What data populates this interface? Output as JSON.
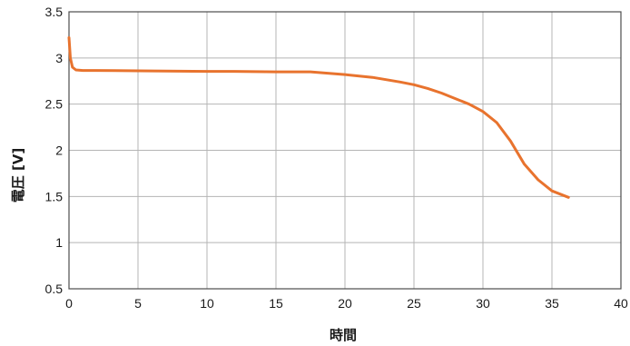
{
  "chart_data": {
    "type": "line",
    "title": "",
    "xlabel": "時間",
    "ylabel": "電圧 [V]",
    "xlim": [
      0,
      40
    ],
    "ylim": [
      0.5,
      3.5
    ],
    "x_ticks": [
      0,
      5,
      10,
      15,
      20,
      25,
      30,
      35,
      40
    ],
    "y_ticks": [
      0.5,
      1,
      1.5,
      2,
      2.5,
      3,
      3.5
    ],
    "y_tick_labels": [
      "0.5",
      "1",
      "1.5",
      "2",
      "2.5",
      "3",
      "3.5"
    ],
    "grid": true,
    "series": [
      {
        "color": "#e8732e",
        "x": [
          0,
          0.1,
          0.25,
          0.5,
          1,
          2,
          6,
          10,
          12,
          15,
          17.5,
          20,
          22,
          24,
          25,
          26,
          27,
          28,
          29,
          30,
          31,
          32,
          33,
          34,
          35,
          36.2
        ],
        "y": [
          3.22,
          3.0,
          2.9,
          2.87,
          2.865,
          2.865,
          2.86,
          2.855,
          2.855,
          2.85,
          2.85,
          2.82,
          2.79,
          2.74,
          2.71,
          2.67,
          2.62,
          2.56,
          2.5,
          2.42,
          2.3,
          2.1,
          1.85,
          1.68,
          1.56,
          1.49
        ]
      }
    ]
  }
}
